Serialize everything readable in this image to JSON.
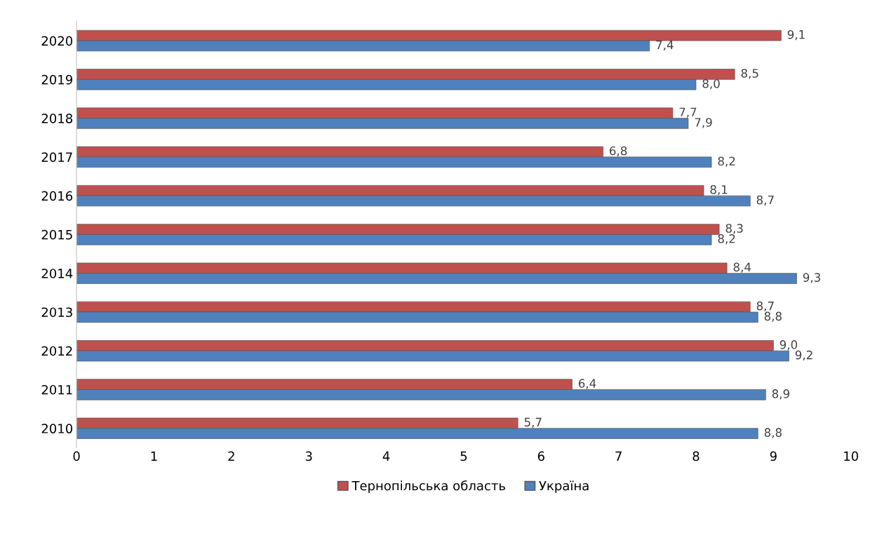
{
  "chart_data": {
    "type": "bar",
    "orientation": "horizontal",
    "categories": [
      "2020",
      "2019",
      "2018",
      "2017",
      "2016",
      "2015",
      "2014",
      "2013",
      "2012",
      "2011",
      "2010"
    ],
    "series": [
      {
        "name": "Тернопільська область",
        "color": "#c0504d",
        "values": [
          9.1,
          8.5,
          7.7,
          6.8,
          8.1,
          8.3,
          8.4,
          8.7,
          9.0,
          6.4,
          5.7
        ],
        "value_labels": [
          "9,1",
          "8,5",
          "7,7",
          "6,8",
          "8,1",
          "8,3",
          "8,4",
          "8,7",
          "9,0",
          "6,4",
          "5,7"
        ]
      },
      {
        "name": "Україна",
        "color": "#4f81bd",
        "values": [
          7.4,
          8.0,
          7.9,
          8.2,
          8.7,
          8.2,
          9.3,
          8.8,
          9.2,
          8.9,
          8.8
        ],
        "value_labels": [
          "7,4",
          "8,0",
          "7,9",
          "8,2",
          "8,7",
          "8,2",
          "9,3",
          "8,8",
          "9,2",
          "8,9",
          "8,8"
        ]
      }
    ],
    "xlim": [
      0,
      10
    ],
    "xticks": [
      0,
      1,
      2,
      3,
      4,
      5,
      6,
      7,
      8,
      9,
      10
    ],
    "grid": false,
    "legend": "bottom"
  }
}
